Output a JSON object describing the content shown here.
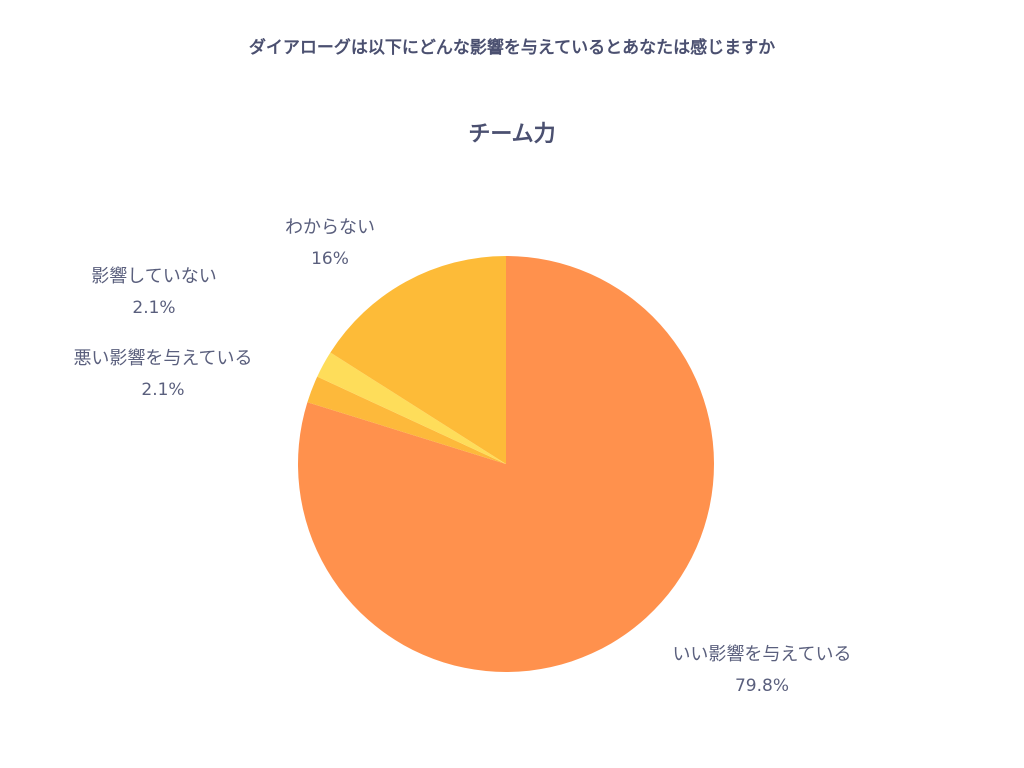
{
  "question": "ダイアローグは以下にどんな影響を与えているとあなたは感じますか",
  "chart_data": {
    "type": "pie",
    "title": "チーム力",
    "slices": [
      {
        "label": "いい影響を与えている",
        "value": 79.8,
        "display": "79.8%",
        "color": "#ff914d"
      },
      {
        "label": "悪い影響を与えている",
        "value": 2.1,
        "display": "2.1%",
        "color": "#fdb93b"
      },
      {
        "label": "影響していない",
        "value": 2.1,
        "display": "2.1%",
        "color": "#fedd5a"
      },
      {
        "label": "わからない",
        "value": 16,
        "display": "16%",
        "color": "#fdbb38"
      }
    ],
    "start_angle": "12 o'clock",
    "direction": "clockwise",
    "legend": "none"
  }
}
